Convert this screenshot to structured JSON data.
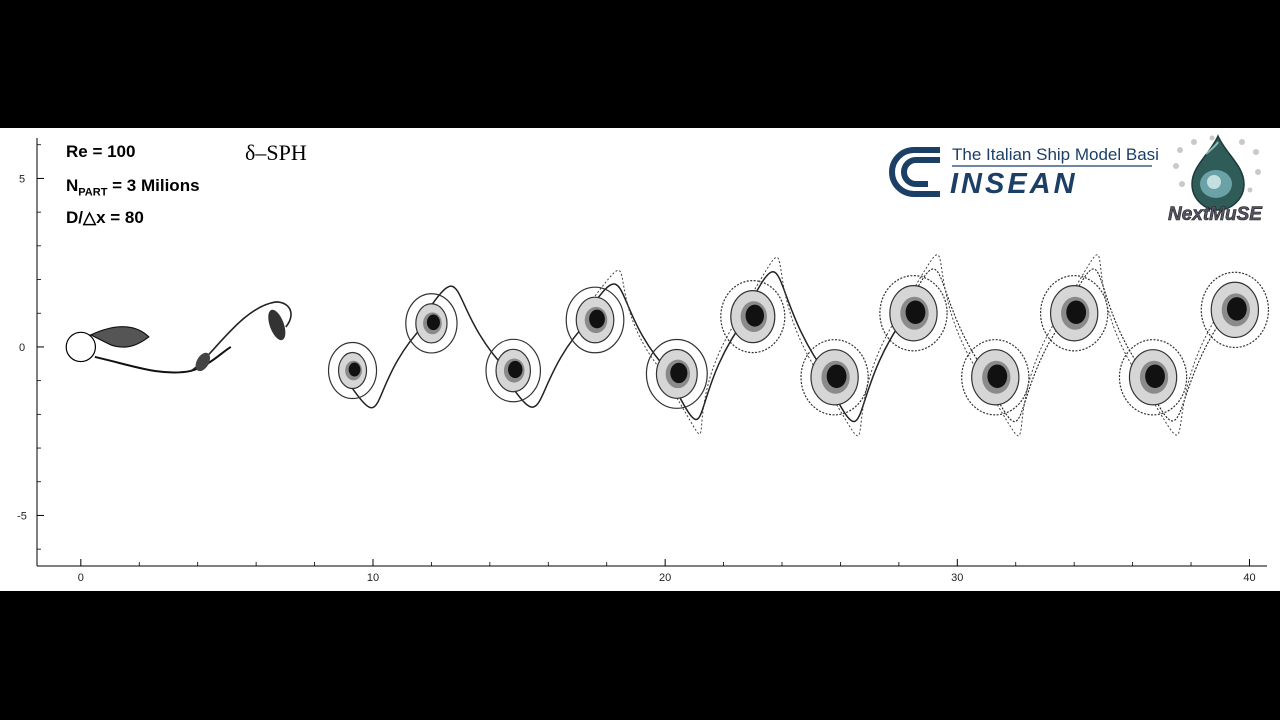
{
  "params": {
    "re": "Re = 100",
    "npart_n": "N",
    "npart_sub": "PART",
    "npart_rest": " = 3 Milions",
    "res": "D/△x  = 80"
  },
  "method_label": "δ–SPH",
  "brand": {
    "tagline": "The Italian Ship Model Basin",
    "name": "INSEAN",
    "partner": "NextMuSE",
    "colors": {
      "navy": "#1c3f66",
      "partner": "#556"
    }
  },
  "chart_data": {
    "type": "scatter",
    "xlim": [
      -1.5,
      40.6
    ],
    "ylim": [
      -6.5,
      6.2
    ],
    "xticks": [
      "0",
      "10",
      "20",
      "30",
      "40"
    ],
    "yticks": [
      "5",
      "0",
      "-5"
    ],
    "cylinder": {
      "x": 0,
      "y": 0,
      "diameter": 1
    },
    "vortices": [
      {
        "x": 9.3,
        "y": -0.7
      },
      {
        "x": 12.0,
        "y": 0.7
      },
      {
        "x": 14.8,
        "y": -0.7
      },
      {
        "x": 17.6,
        "y": 0.8
      },
      {
        "x": 20.4,
        "y": -0.8
      },
      {
        "x": 23.0,
        "y": 0.9
      },
      {
        "x": 25.8,
        "y": -0.9
      },
      {
        "x": 28.5,
        "y": 1.0
      },
      {
        "x": 31.3,
        "y": -0.9
      },
      {
        "x": 34.0,
        "y": 1.0
      },
      {
        "x": 36.7,
        "y": -0.9
      },
      {
        "x": 39.5,
        "y": 1.1
      }
    ]
  }
}
